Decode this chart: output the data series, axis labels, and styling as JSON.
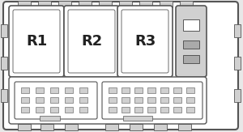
{
  "bg_color": "#e8e8e8",
  "line_color": "#555555",
  "white": "#ffffff",
  "light_gray": "#d0d0d0",
  "mid_gray": "#aaaaaa",
  "relay_labels": [
    "R1",
    "R2",
    "R3"
  ],
  "relay_fontsize": 13,
  "figsize": [
    3.0,
    1.63
  ],
  "dpi": 100
}
